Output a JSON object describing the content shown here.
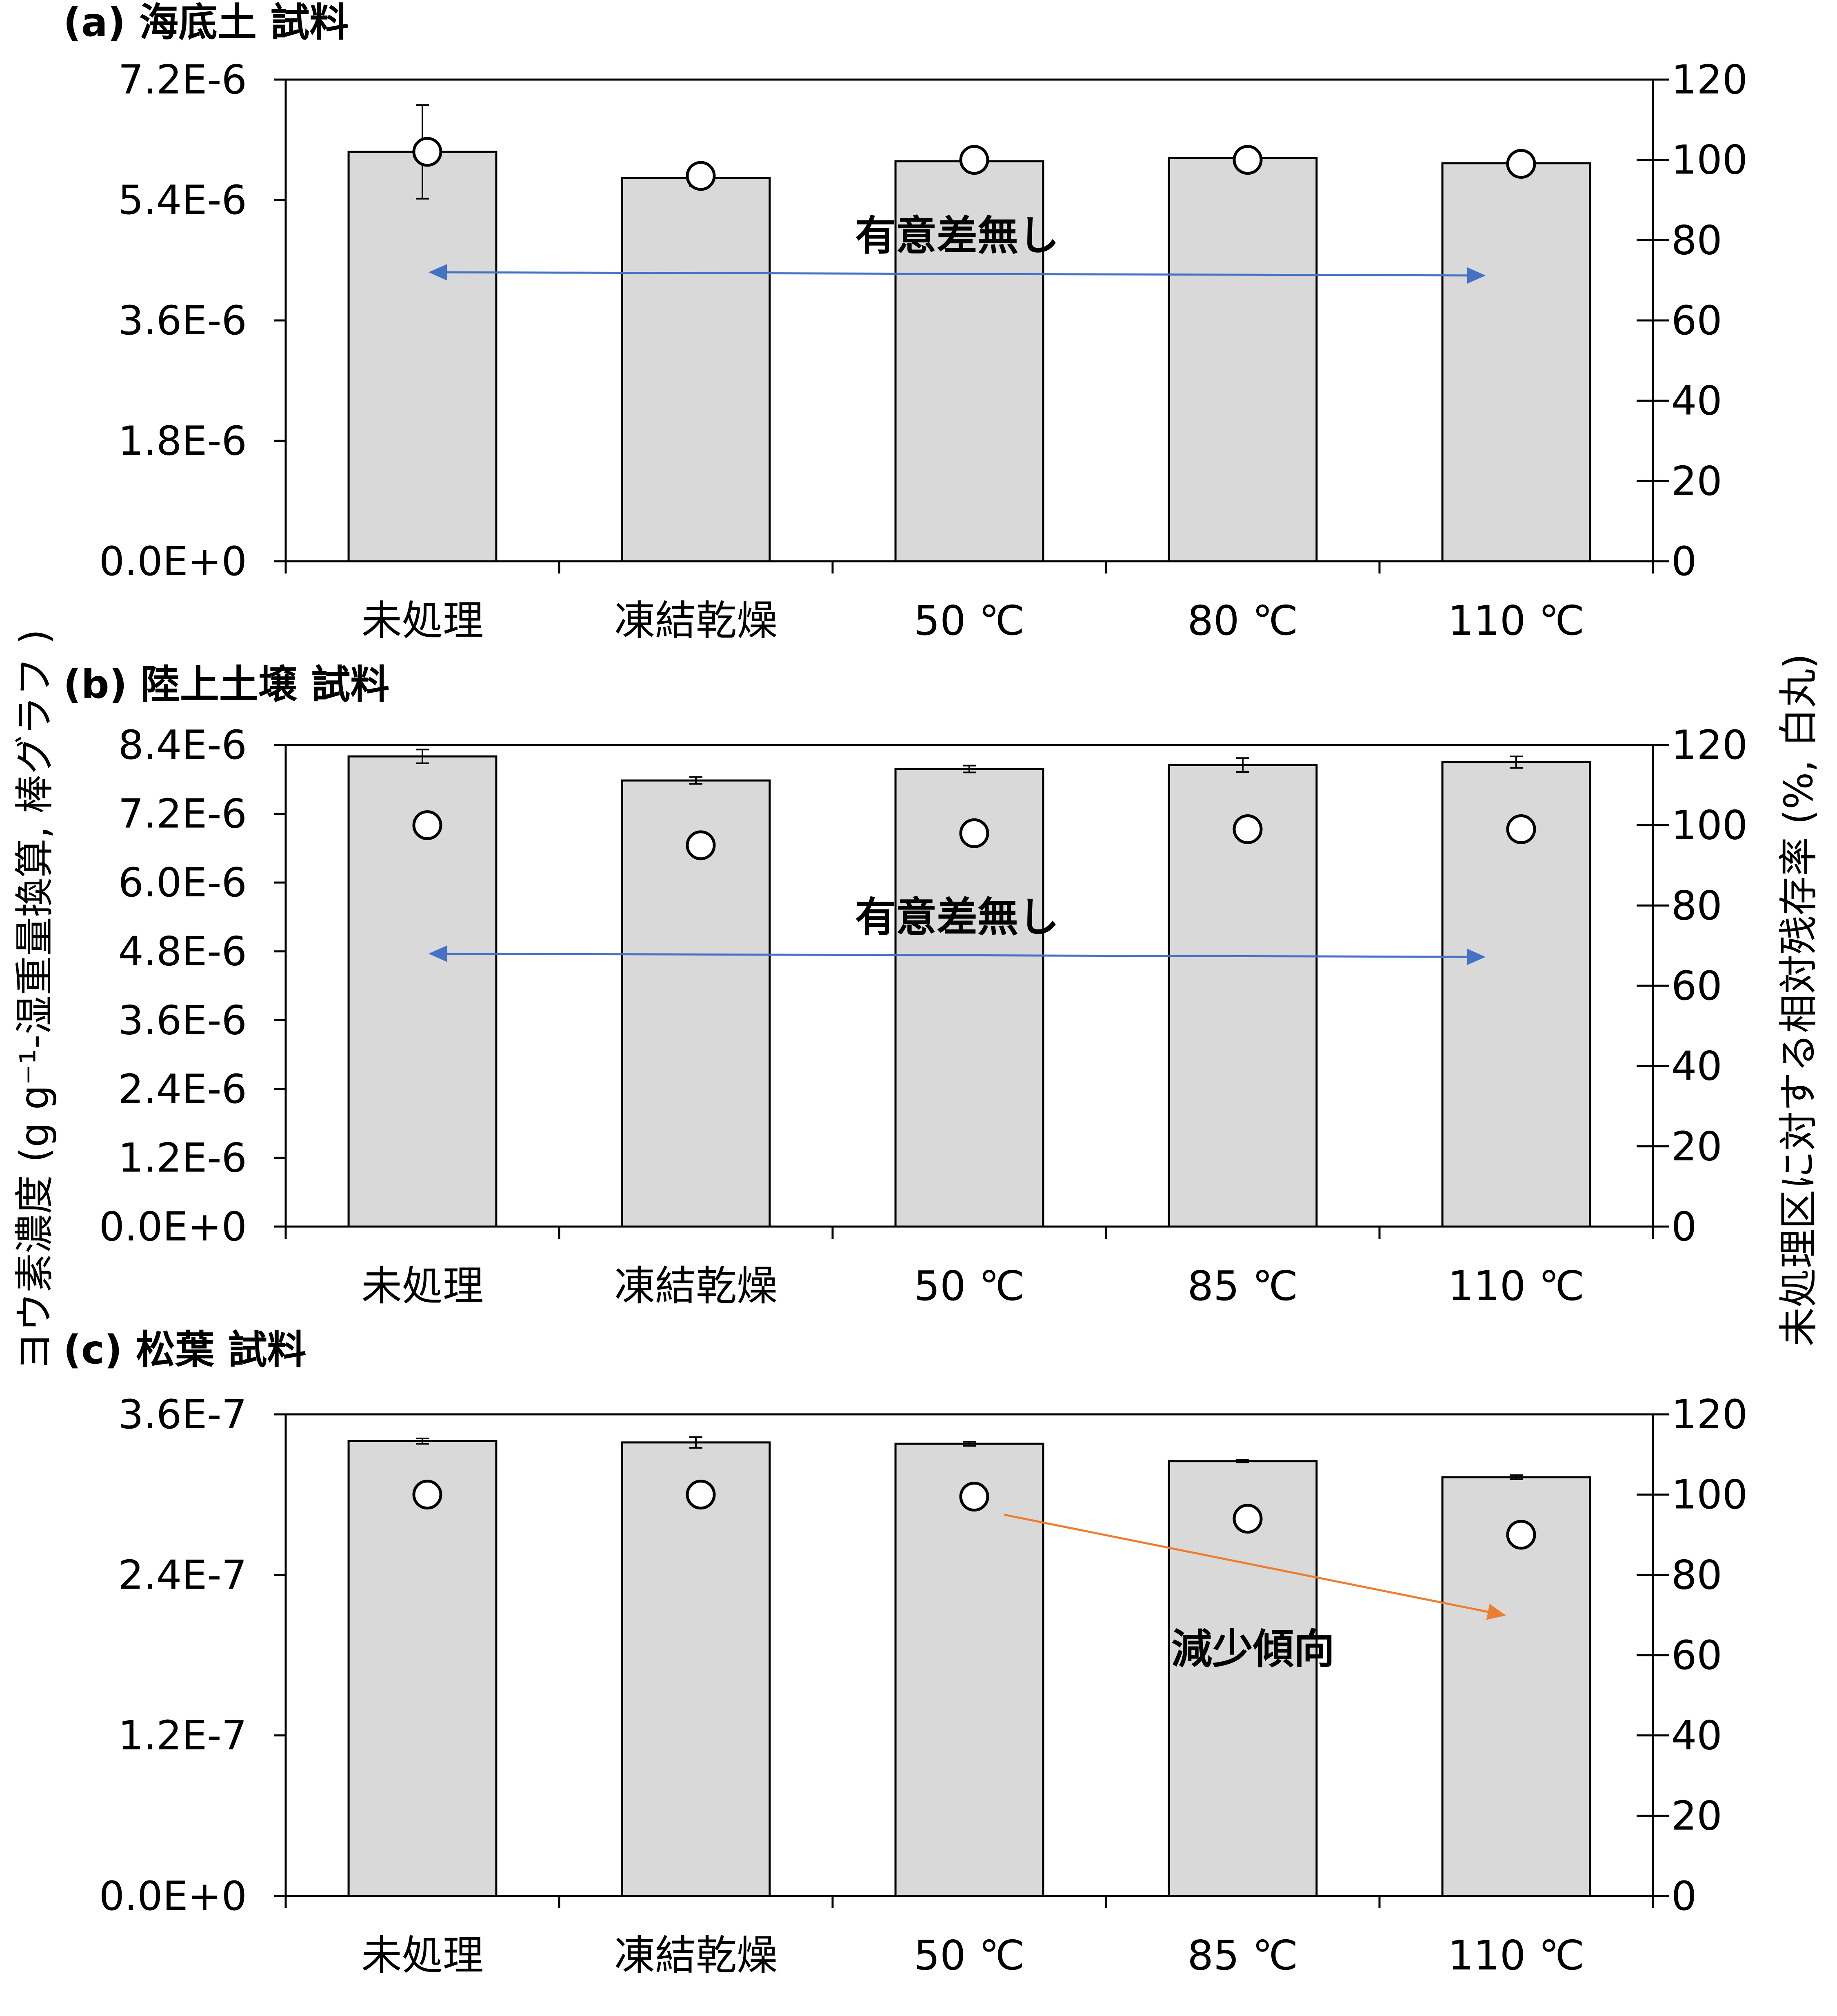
{
  "colors": {
    "bar_fill": "#d9d9d9",
    "bar_stroke": "#000000",
    "marker_fill": "#ffffff",
    "arrow_blue": "#4472c4",
    "arrow_orange": "#ed7d31"
  },
  "axis_titles": {
    "left": "ヨウ素濃度 (g g⁻¹-湿重量換算, 棒グラフ )",
    "right": "未処理区に対する相対残存率 (%, 白丸)"
  },
  "chart_data": [
    {
      "type": "bar",
      "title": "(a) 海底土 試料",
      "categories": [
        "未処理",
        "凍結乾燥",
        "50 ℃",
        "80 ℃",
        "110 ℃"
      ],
      "series": [
        {
          "values": [
            6.12e-06,
            5.73e-06,
            5.98e-06,
            6.03e-06,
            5.95e-06
          ],
          "errors": [
            7e-07,
            1.2e-07,
            1.2e-07,
            2e-08,
            4e-08
          ]
        }
      ],
      "y_ticks": [
        "0.0E+0",
        "1.8E-6",
        "3.6E-6",
        "5.4E-6",
        "7.2E-6"
      ],
      "ylim": [
        0,
        7.2e-06
      ],
      "y2": {
        "values": [
          102,
          96,
          100,
          100,
          99
        ],
        "ylim": [
          0,
          120
        ],
        "ticks": [
          "0",
          "20",
          "40",
          "60",
          "80",
          "100",
          "120"
        ]
      },
      "annotation": {
        "text": "有意差無し",
        "arrow_color": "blue",
        "from_category": 0,
        "to_category": 4,
        "y2_value": 72
      },
      "grid": false
    },
    {
      "type": "bar",
      "title": "(b) 陸上土壌 試料",
      "categories": [
        "未処理",
        "凍結乾燥",
        "50 ℃",
        "85 ℃",
        "110 ℃"
      ],
      "series": [
        {
          "values": [
            8.2e-06,
            7.78e-06,
            7.98e-06,
            8.05e-06,
            8.1e-06
          ],
          "errors": [
            1.2e-07,
            6e-08,
            6e-08,
            1.2e-07,
            1e-07
          ]
        }
      ],
      "y_ticks": [
        "0.0E+0",
        "1.2E-6",
        "2.4E-6",
        "3.6E-6",
        "4.8E-6",
        "6.0E-6",
        "7.2E-6",
        "8.4E-6"
      ],
      "ylim": [
        0,
        8.4e-06
      ],
      "y2": {
        "values": [
          100,
          95,
          98,
          99,
          99
        ],
        "ylim": [
          0,
          120
        ],
        "ticks": [
          "0",
          "20",
          "40",
          "60",
          "80",
          "100",
          "120"
        ]
      },
      "annotation": {
        "text": "有意差無し",
        "arrow_color": "blue",
        "from_category": 0,
        "to_category": 4,
        "y2_value": 68
      },
      "grid": false
    },
    {
      "type": "bar",
      "title": "(c) 松葉 試料",
      "categories": [
        "未処理",
        "凍結乾燥",
        "50 ℃",
        "85 ℃",
        "110 ℃"
      ],
      "series": [
        {
          "values": [
            3.4e-07,
            3.39e-07,
            3.38e-07,
            3.25e-07,
            3.13e-07
          ],
          "errors": [
            2e-09,
            4e-09,
            1.5e-09,
            1e-09,
            1.5e-09
          ]
        }
      ],
      "y_ticks": [
        "0.0E+0",
        "1.2E-7",
        "2.4E-7",
        "3.6E-7"
      ],
      "ylim": [
        0,
        3.6e-07
      ],
      "y2": {
        "values": [
          100,
          100,
          99.5,
          94,
          90
        ],
        "ylim": [
          0,
          120
        ],
        "ticks": [
          "0",
          "20",
          "40",
          "60",
          "80",
          "100",
          "120"
        ]
      },
      "annotation": {
        "text": "減少傾向",
        "arrow_color": "orange"
      },
      "grid": false
    }
  ]
}
